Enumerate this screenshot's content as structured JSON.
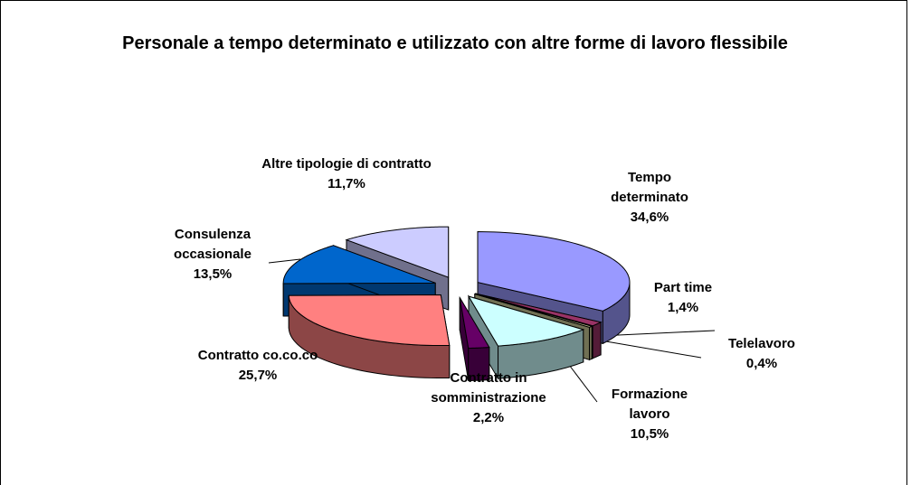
{
  "chart_data": {
    "type": "pie3d",
    "title": "Personale a tempo determinato e utilizzato con altre forme di lavoro flessibile",
    "categories": [
      "Tempo determinato",
      "Part time",
      "Telelavoro",
      "Formazione lavoro",
      "Contratto in somministrazione",
      "Contratto co.co.co",
      "Consulenza occasionale",
      "Altre tipologie di contratto"
    ],
    "values": [
      34.6,
      1.4,
      0.4,
      10.5,
      2.2,
      25.7,
      13.5,
      11.7
    ],
    "value_labels": [
      "34,6%",
      "1,4%",
      "0,4%",
      "10,5%",
      "2,2%",
      "25,7%",
      "13,5%",
      "11,7%"
    ],
    "colors": [
      "#9999ff",
      "#993366",
      "#cccc99",
      "#ccffff",
      "#660066",
      "#ff8080",
      "#0066cc",
      "#ccccff"
    ]
  }
}
